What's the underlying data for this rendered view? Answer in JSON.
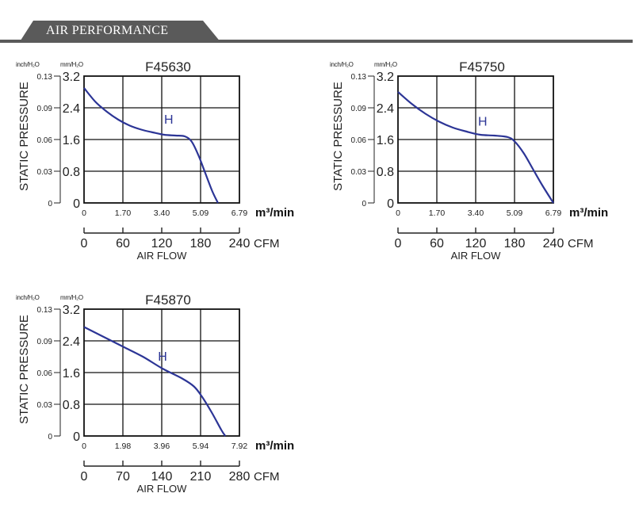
{
  "header": {
    "title": "AIR PERFORMANCE"
  },
  "colors": {
    "curve": "#2c3596",
    "header_bg": "#5a5a5a",
    "grid": "#111111"
  },
  "chart_data": [
    {
      "type": "line",
      "title": "F45630",
      "ylabel": "STATIC PRESSURE",
      "xlabel": "AIR FLOW",
      "y_unit_inch": "inch/H₂O",
      "y_unit_mm": "mm/H₂O",
      "y_ticks_inch": [
        "0",
        "0.03",
        "0.06",
        "0.09",
        "0.13"
      ],
      "y_ticks_mm": [
        "0",
        "0.8",
        "1.6",
        "2.4",
        "3.2"
      ],
      "ylim": [
        0,
        3.2
      ],
      "x_unit_m3": "m³/min",
      "x_ticks_m3": [
        "0",
        "1.70",
        "3.40",
        "5.09",
        "6.79"
      ],
      "x_max_m3": 6.79,
      "x_unit_cfm": "CFM",
      "x_ticks_cfm": [
        "0",
        "60",
        "120",
        "180",
        "240"
      ],
      "series": [
        {
          "name": "H",
          "points": [
            [
              0,
              2.9
            ],
            [
              0.5,
              2.55
            ],
            [
              1.0,
              2.3
            ],
            [
              1.5,
              2.1
            ],
            [
              2.0,
              1.95
            ],
            [
              2.5,
              1.85
            ],
            [
              3.0,
              1.78
            ],
            [
              3.5,
              1.72
            ],
            [
              4.0,
              1.7
            ],
            [
              4.4,
              1.68
            ],
            [
              4.7,
              1.55
            ],
            [
              5.0,
              1.2
            ],
            [
              5.3,
              0.75
            ],
            [
              5.6,
              0.3
            ],
            [
              5.85,
              0
            ]
          ]
        }
      ],
      "label_pos": [
        3.7,
        2.0
      ]
    },
    {
      "type": "line",
      "title": "F45750",
      "ylabel": "STATIC PRESSURE",
      "xlabel": "AIR FLOW",
      "y_unit_inch": "inch/H₂O",
      "y_unit_mm": "mm/H₂O",
      "y_ticks_inch": [
        "0",
        "0.03",
        "0.06",
        "0.09",
        "0.13"
      ],
      "y_ticks_mm": [
        "0",
        "0.8",
        "1.6",
        "2.4",
        "3.2"
      ],
      "ylim": [
        0,
        3.2
      ],
      "x_unit_m3": "m³/min",
      "x_ticks_m3": [
        "0",
        "1.70",
        "3.40",
        "5.09",
        "6.79"
      ],
      "x_max_m3": 6.79,
      "x_unit_cfm": "CFM",
      "x_ticks_cfm": [
        "0",
        "60",
        "120",
        "180",
        "240"
      ],
      "series": [
        {
          "name": "H",
          "points": [
            [
              0,
              2.8
            ],
            [
              0.6,
              2.5
            ],
            [
              1.2,
              2.25
            ],
            [
              1.8,
              2.05
            ],
            [
              2.4,
              1.9
            ],
            [
              3.0,
              1.8
            ],
            [
              3.6,
              1.72
            ],
            [
              4.2,
              1.7
            ],
            [
              4.8,
              1.66
            ],
            [
              5.1,
              1.55
            ],
            [
              5.5,
              1.25
            ],
            [
              5.9,
              0.85
            ],
            [
              6.3,
              0.45
            ],
            [
              6.79,
              0
            ]
          ]
        }
      ],
      "label_pos": [
        3.7,
        1.95
      ]
    },
    {
      "type": "line",
      "title": "F45870",
      "ylabel": "STATIC PRESSURE",
      "xlabel": "AIR FLOW",
      "y_unit_inch": "inch/H₂O",
      "y_unit_mm": "mm/H₂O",
      "y_ticks_inch": [
        "0",
        "0.03",
        "0.06",
        "0.09",
        "0.13"
      ],
      "y_ticks_mm": [
        "0",
        "0.8",
        "1.6",
        "2.4",
        "3.2"
      ],
      "ylim": [
        0,
        3.2
      ],
      "x_unit_m3": "m³/min",
      "x_ticks_m3": [
        "0",
        "1.98",
        "3.96",
        "5.94",
        "7.92"
      ],
      "x_max_m3": 7.92,
      "x_unit_cfm": "CFM",
      "x_ticks_cfm": [
        "0",
        "70",
        "140",
        "210",
        "280"
      ],
      "series": [
        {
          "name": "H",
          "points": [
            [
              0,
              2.75
            ],
            [
              1.0,
              2.5
            ],
            [
              2.0,
              2.25
            ],
            [
              3.0,
              2.0
            ],
            [
              4.0,
              1.7
            ],
            [
              5.0,
              1.45
            ],
            [
              5.6,
              1.25
            ],
            [
              6.0,
              1.0
            ],
            [
              6.5,
              0.6
            ],
            [
              7.0,
              0.15
            ],
            [
              7.2,
              0
            ]
          ]
        }
      ],
      "label_pos": [
        4.0,
        1.9
      ]
    }
  ]
}
